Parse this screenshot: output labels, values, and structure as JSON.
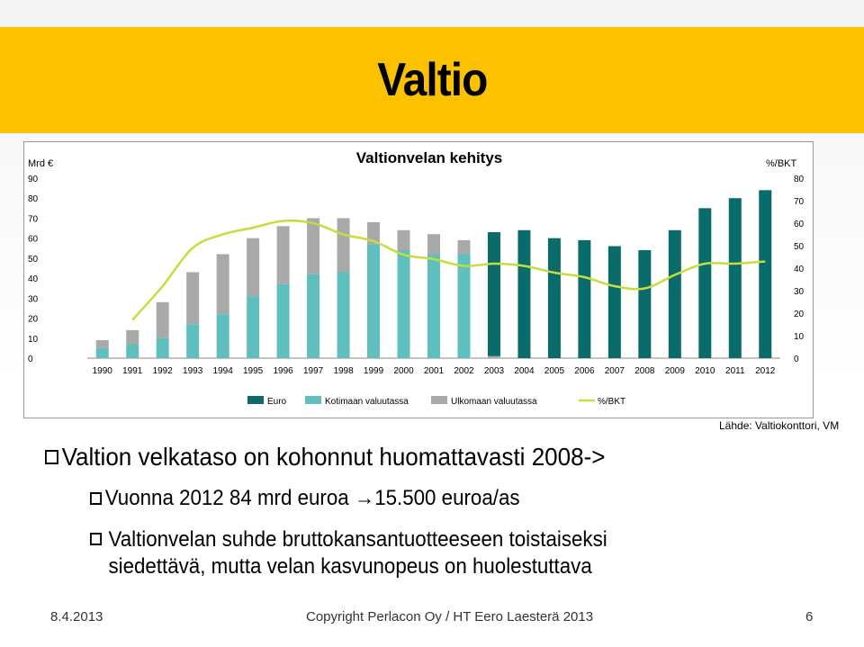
{
  "slide": {
    "title": "Valtio",
    "source": "Lähde: Valtiokonttori, VM",
    "bullets": {
      "main": "Valtion velkataso on kohonnut huomattavasti 2008->",
      "sub1": "Vuonna 2012 84 mrd euroa ",
      "sub1_arrow": "→",
      "sub1_tail": "15.500 euroa/as",
      "sub2_line1": "Valtionvelan suhde bruttokansantuotteeseen toistaiseksi",
      "sub2_line2": "siedettävä, mutta velan kasvunopeus on huolestuttava"
    },
    "footer": {
      "date": "8.4.2013",
      "copyright": "Copyright Perlacon Oy / HT Eero Laesterä 2013",
      "page": "6"
    }
  },
  "colors": {
    "title_bar": "#fcc200",
    "euro": "#0a6b6b",
    "kotimaan": "#5fbebe",
    "ulkomaan": "#a7aaa9",
    "bkt_line": "#c8dc3c"
  },
  "chart_data": {
    "type": "bar",
    "stacked": true,
    "title": "Valtionvelan kehitys",
    "ylabel": "Mrd €",
    "y2label": "%/BKT",
    "ylim": [
      0,
      90
    ],
    "y2lim": [
      0,
      80
    ],
    "yticks": [
      0,
      10,
      20,
      30,
      40,
      50,
      60,
      70,
      80,
      90
    ],
    "y2ticks": [
      0,
      10,
      20,
      30,
      40,
      50,
      60,
      70,
      80
    ],
    "categories": [
      "1990",
      "1991",
      "1992",
      "1993",
      "1994",
      "1995",
      "1996",
      "1997",
      "1998",
      "1999",
      "2000",
      "2001",
      "2002",
      "2003",
      "2004",
      "2005",
      "2006",
      "2007",
      "2008",
      "2009",
      "2010",
      "2011",
      "2012"
    ],
    "series": [
      {
        "name": "Euro",
        "kind": "bar",
        "color": "#0a6b6b",
        "values": [
          0,
          0,
          0,
          0,
          0,
          0,
          0,
          0,
          0,
          0,
          0,
          0,
          0,
          62,
          64,
          60,
          59,
          56,
          54,
          64,
          75,
          80,
          84
        ]
      },
      {
        "name": "Kotimaan valuutassa",
        "kind": "bar",
        "color": "#5fbebe",
        "values": [
          5,
          7,
          10,
          17,
          22,
          31,
          37,
          42,
          43,
          57,
          54,
          52,
          52,
          0,
          0,
          0,
          0,
          0,
          0,
          0,
          0,
          0,
          0
        ]
      },
      {
        "name": "Ulkomaan valuutassa",
        "kind": "bar",
        "color": "#a7aaa9",
        "values": [
          4,
          7,
          18,
          26,
          30,
          29,
          29,
          28,
          27,
          11,
          10,
          10,
          7,
          1,
          0,
          0,
          0,
          0,
          0,
          0,
          0,
          0,
          0
        ]
      },
      {
        "name": "%/BKT",
        "kind": "line",
        "axis": "secondary",
        "color": "#c8dc3c",
        "values": [
          null,
          17,
          32,
          49,
          55,
          58,
          61,
          60,
          55,
          52,
          46,
          44,
          41,
          42,
          41,
          38,
          36,
          32,
          31,
          37,
          42,
          42,
          43
        ]
      }
    ],
    "legend_position": "bottom"
  }
}
